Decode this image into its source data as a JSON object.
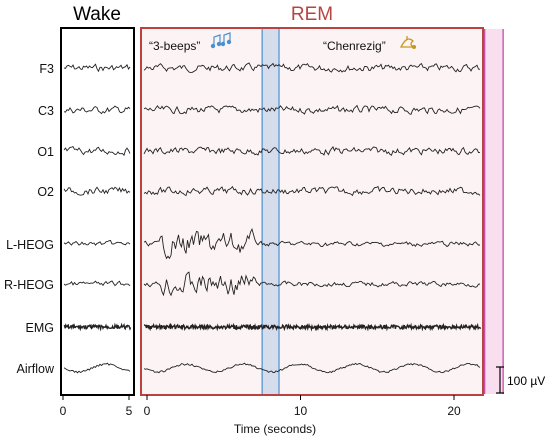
{
  "chart_data": {
    "type": "line",
    "panels": [
      {
        "title": "Wake",
        "title_color": "#000000",
        "border_color": "#000000",
        "x_ticks": [
          0,
          5
        ]
      },
      {
        "title": "REM",
        "title_color": "#b9443f",
        "border_color": "#b9443f",
        "x_ticks": [
          0,
          10,
          20
        ]
      }
    ],
    "xlabel": "Time (seconds)",
    "channels": [
      "F3",
      "C3",
      "O1",
      "O2",
      "L-HEOG",
      "R-HEOG",
      "EMG",
      "Airflow"
    ],
    "events": [
      {
        "label": "“3-beeps”",
        "icon": "music-notes-icon",
        "start": 7.5,
        "end": 8.6,
        "fill": "#c8d4ea",
        "stroke": "#4a90d0"
      },
      {
        "label": "“Chenrezig”",
        "icon": "bell-icon",
        "start": 22.0,
        "end": 23.2,
        "fill": "#f6d3ea",
        "stroke": "#c23c9f"
      }
    ],
    "scale_bar": {
      "label": "100 µV",
      "value": 100
    }
  },
  "colors": {
    "wake_border": "#000000",
    "rem_border": "#b9443f",
    "rem_fill": "#fcf4f4",
    "trace": "#222222"
  }
}
